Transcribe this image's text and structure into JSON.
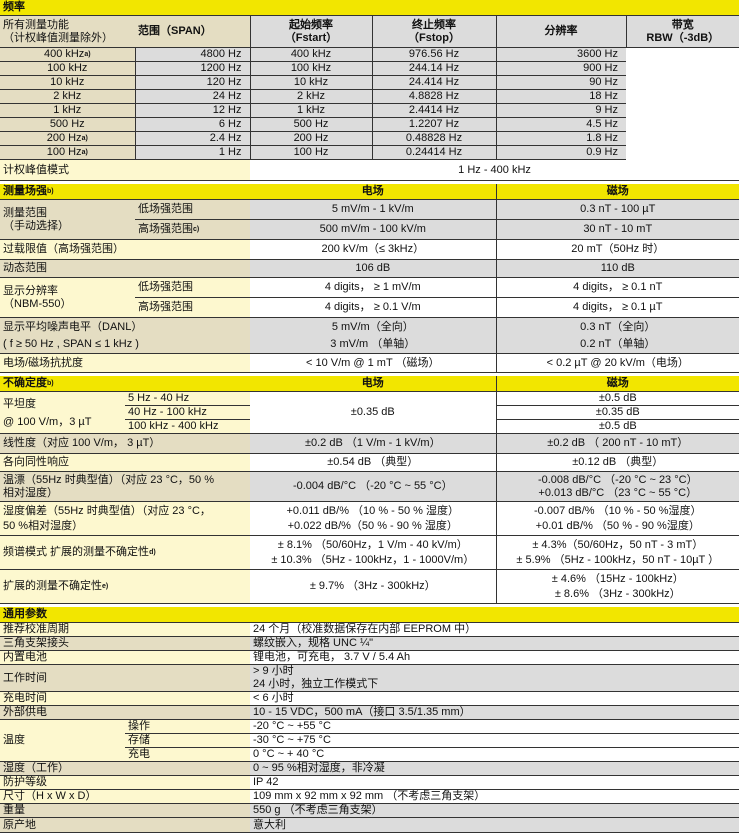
{
  "colors": {
    "section_header": "#f2e600",
    "label_bg": "#fdf8cf",
    "label_bg_dark": "#e4ddc2",
    "row_gray": "#dcdcdc"
  },
  "frequency": {
    "title": "频率",
    "label": [
      "所有测量功能",
      "（计权峰值测量除外）"
    ],
    "headers": {
      "span": "范围（SPAN）",
      "fstart": [
        "起始频率",
        "（Fstart）"
      ],
      "fstop": [
        "终止频率",
        "（Fstop）"
      ],
      "resolution": "分辨率",
      "rbw": [
        "带宽",
        "RBW（-3dB）"
      ]
    },
    "rows": [
      {
        "span": "400 kHz",
        "note": "a)",
        "fstart": "4800 Hz",
        "fstop": "400 kHz",
        "res": "976.56 Hz",
        "rbw": "3600 Hz"
      },
      {
        "span": "100 kHz",
        "note": "",
        "fstart": "1200 Hz",
        "fstop": "100 kHz",
        "res": "244.14 Hz",
        "rbw": "900 Hz"
      },
      {
        "span": "10 kHz",
        "note": "",
        "fstart": "120 Hz",
        "fstop": "10 kHz",
        "res": "24.414 Hz",
        "rbw": "90 Hz"
      },
      {
        "span": "2 kHz",
        "note": "",
        "fstart": "24 Hz",
        "fstop": "2 kHz",
        "res": "4.8828 Hz",
        "rbw": "18 Hz"
      },
      {
        "span": "1 kHz",
        "note": "",
        "fstart": "12 Hz",
        "fstop": "1 kHz",
        "res": "2.4414 Hz",
        "rbw": "9 Hz"
      },
      {
        "span": "500 Hz",
        "note": "",
        "fstart": "6 Hz",
        "fstop": "500 Hz",
        "res": "1.2207 Hz",
        "rbw": "4.5 Hz"
      },
      {
        "span": "200 Hz",
        "note": "a)",
        "fstart": "2.4 Hz",
        "fstop": "200 Hz",
        "res": "0.48828 Hz",
        "rbw": "1.8 Hz"
      },
      {
        "span": "100 Hz",
        "note": "a)",
        "fstart": "1 Hz",
        "fstop": "100 Hz",
        "res": "0.24414 Hz",
        "rbw": "0.9 Hz"
      }
    ],
    "weighted_peak": {
      "label": "计权峰值模式",
      "value": "1 Hz - 400 kHz"
    }
  },
  "field": {
    "title": "测量场强",
    "title_note": "b)",
    "col_e": "电场",
    "col_h": "磁场",
    "range": {
      "label": [
        "测量范围",
        "（手动选择）"
      ],
      "low": {
        "label": "低场强范围",
        "e": "5 mV/m - 1 kV/m",
        "h": "0.3 nT - 100 µT"
      },
      "high": {
        "label": "高场强范围",
        "note": "c)",
        "e": "500 mV/m - 100 kV/m",
        "h": "30 nT - 10 mT"
      }
    },
    "overload": {
      "label": "过载限值（高场强范围）",
      "e": "200 kV/m（≤ 3kHz）",
      "h": "20 mT（50Hz 时）"
    },
    "dynamic": {
      "label": "动态范围",
      "e": "106 dB",
      "h": "110 dB"
    },
    "display_res": {
      "label": [
        "显示分辨率",
        "（NBM-550）"
      ],
      "low": {
        "label": "低场强范围",
        "e": "4 digits， ≥ 1 mV/m",
        "h": "4 digits， ≥ 0.1 nT"
      },
      "high": {
        "label": "高场强范围",
        "e": "4 digits， ≥ 0.1 V/m",
        "h": "4 digits， ≥ 0.1 µT"
      }
    },
    "danl": {
      "label": [
        "显示平均噪声电平（DANL）",
        "( f ≥ 50 Hz , SPAN ≤ 1 kHz )"
      ],
      "e": [
        "5 mV/m（全向）",
        "3 mV/m （单轴）"
      ],
      "h": [
        "0.3 nT（全向）",
        "0.2 nT（单轴）"
      ]
    },
    "immunity": {
      "label": "电场/磁场抗扰度",
      "e": "< 10 V/m @ 1 mT （磁场）",
      "h": "< 0.2 µT @ 20 kV/m（电场）"
    }
  },
  "uncertainty": {
    "title": "不确定度",
    "title_note": "b)",
    "col_e": "电场",
    "col_h": "磁场",
    "flatness": {
      "label": [
        "平坦度",
        "@ 100 V/m，3 µT"
      ],
      "ranges": [
        "5 Hz - 40 Hz",
        "40 Hz - 100 kHz",
        "100 kHz - 400 kHz"
      ],
      "e": "±0.35 dB",
      "h": [
        "±0.5 dB",
        "±0.35 dB",
        "±0.5 dB"
      ]
    },
    "linearity": {
      "label": "线性度（对应 100 V/m， 3 µT）",
      "e": "±0.2 dB （1 V/m - 1 kV/m）",
      "h": "±0.2 dB （ 200 nT - 10 mT）"
    },
    "isotropy": {
      "label": "各向同性响应",
      "e": "±0.54 dB （典型）",
      "h": "±0.12 dB （典型）"
    },
    "temp_drift": {
      "label": [
        "温漂（55Hz 时典型值）（对应 23 °C，50 %",
        "相对湿度）"
      ],
      "e": "-0.004 dB/°C （-20 °C ~ 55 °C）",
      "h": [
        "-0.008 dB/°C （-20 °C ~ 23 °C）",
        "+0.013 dB/°C （23 °C ~ 55 °C）"
      ]
    },
    "humidity": {
      "label": [
        "湿度偏差（55Hz 时典型值）（对应 23 °C，",
        "50 %相对湿度）"
      ],
      "e": [
        "+0.011 dB/% （10 % - 50 % 湿度）",
        "+0.022 dB/%（50 % - 90 % 湿度）"
      ],
      "h": [
        "-0.007 dB/% （10 % - 50 %湿度）",
        "+0.01 dB/% （50 % - 90 %湿度）"
      ]
    },
    "spectrum": {
      "label": "频谱模式 扩展的测量不确定性",
      "note": "d)",
      "e": [
        "± 8.1% （50/60Hz，1 V/m - 40 kV/m）",
        "± 10.3% （5Hz - 100kHz，1 - 1000V/m）"
      ],
      "h": [
        "± 4.3%（50/60Hz，50 nT - 3 mT）",
        "± 5.9% （5Hz - 100kHz，50 nT - 10µT ）"
      ]
    },
    "expanded": {
      "label": "扩展的测量不确定性",
      "note": "e)",
      "e": "± 9.7% （3Hz - 300kHz）",
      "h": [
        "± 4.6% （15Hz - 100kHz）",
        "± 8.6% （3Hz - 300kHz）"
      ]
    }
  },
  "general": {
    "title": "通用参数",
    "rows": [
      {
        "label": "推荐校准周期",
        "value": [
          "24 个月（校准数据保存在内部 EEPROM 中）"
        ]
      },
      {
        "label": "三角支架接头",
        "value": [
          "螺纹嵌入，规格 UNC ¼\""
        ]
      },
      {
        "label": "内置电池",
        "value": [
          "锂电池，可充电， 3.7 V / 5.4 Ah"
        ]
      },
      {
        "label": "工作时间",
        "value": [
          "> 9 小时",
          "24 小时，独立工作模式下"
        ]
      },
      {
        "label": "充电时间",
        "value": [
          "< 6 小时"
        ]
      },
      {
        "label": "外部供电",
        "value": [
          "10 - 15 VDC，500 mA（接口 3.5/1.35 mm）"
        ]
      }
    ],
    "temperature": {
      "label": "温度",
      "rows": [
        {
          "label": "操作",
          "value": "-20 °C ~ +55 °C"
        },
        {
          "label": "存储",
          "value": "-30 °C ~ +75 °C"
        },
        {
          "label": "充电",
          "value": "0 °C ~ + 40 °C"
        }
      ]
    },
    "rows2": [
      {
        "label": "湿度（工作）",
        "value": "0 ~ 95 %相对湿度，非冷凝"
      },
      {
        "label": "防护等级",
        "value": "IP 42"
      },
      {
        "label": "尺寸（H x W x D）",
        "value": "109 mm x 92 mm x 92 mm （不考虑三角支架）"
      },
      {
        "label": "重量",
        "value": "550 g （不考虑三角支架）"
      },
      {
        "label": "原产地",
        "value": "意大利"
      }
    ]
  }
}
